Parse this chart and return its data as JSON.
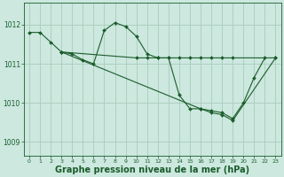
{
  "background_color": "#cce8df",
  "grid_color": "#aaccbb",
  "line_color": "#1a5c2a",
  "marker_color": "#1a5c2a",
  "xlabel": "Graphe pression niveau de la mer (hPa)",
  "xlabel_fontsize": 7,
  "xticks": [
    0,
    1,
    2,
    3,
    4,
    5,
    6,
    7,
    8,
    9,
    10,
    11,
    12,
    13,
    14,
    15,
    16,
    17,
    18,
    19,
    20,
    21,
    22,
    23
  ],
  "yticks": [
    1009,
    1010,
    1011,
    1012
  ],
  "ylim": [
    1008.65,
    1012.55
  ],
  "xlim": [
    -0.5,
    23.5
  ],
  "series1_x": [
    0,
    1,
    2,
    3,
    4,
    5,
    6,
    7,
    8,
    9,
    10,
    11,
    12,
    13,
    14,
    15,
    16,
    17,
    18,
    19,
    20,
    21,
    22
  ],
  "series1_y": [
    1011.8,
    1011.8,
    1011.55,
    1011.3,
    1011.25,
    1011.1,
    1011.0,
    1011.85,
    1012.05,
    1011.95,
    1011.7,
    1011.25,
    1011.15,
    1011.15,
    1010.2,
    1009.85,
    1009.85,
    1009.8,
    1009.75,
    1009.6,
    1010.0,
    1010.65,
    1011.15
  ],
  "series2_x": [
    3,
    10,
    11,
    12,
    13,
    14,
    15,
    16,
    17,
    18,
    19,
    23
  ],
  "series2_y": [
    1011.3,
    1011.15,
    1011.15,
    1011.15,
    1011.15,
    1011.15,
    1011.15,
    1011.15,
    1011.15,
    1011.15,
    1011.15,
    1011.15
  ],
  "series3_x": [
    3,
    16,
    17,
    18,
    19,
    23
  ],
  "series3_y": [
    1011.3,
    1009.85,
    1009.75,
    1009.7,
    1009.55,
    1011.15
  ],
  "figwidth": 3.2,
  "figheight": 2.0,
  "dpi": 100
}
